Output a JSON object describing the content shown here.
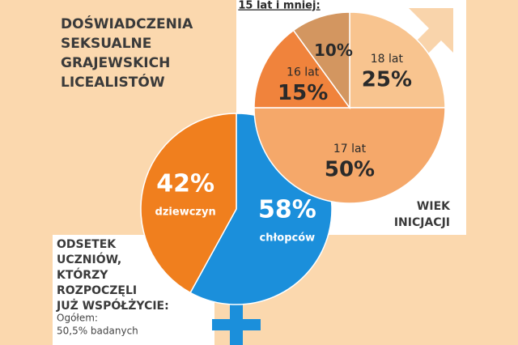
{
  "title": [
    "DOŚWIADCZENIA",
    "SEKSUALNE",
    "GRAJEWSKICH",
    "LICEALISTÓW"
  ],
  "chart_data": [
    {
      "type": "pie",
      "title": [
        "ODSETEK",
        "UCZNIÓW,",
        "KTÓRZY",
        "ROZPOCZĘLI",
        "JUŻ WSPÓŁŻYCIE:"
      ],
      "subtitle": [
        "Ogółem:",
        "50,5% badanych"
      ],
      "categories": [
        "chłopców",
        "dziewczyn"
      ],
      "values": [
        58,
        42
      ],
      "value_labels": [
        "58%",
        "42%"
      ],
      "colors": [
        "#1b8fdb",
        "#f07f1e"
      ]
    },
    {
      "type": "pie",
      "title": [
        "WIEK",
        "INICJACJI"
      ],
      "categories": [
        "18 lat",
        "17 lat",
        "16 lat",
        "15 lat i mniej:"
      ],
      "values": [
        25,
        50,
        15,
        10
      ],
      "value_labels": [
        "25%",
        "50%",
        "15%",
        "10%"
      ],
      "colors": [
        "#f8c48f",
        "#f5a86a",
        "#f0833c",
        "#d39660"
      ]
    }
  ]
}
